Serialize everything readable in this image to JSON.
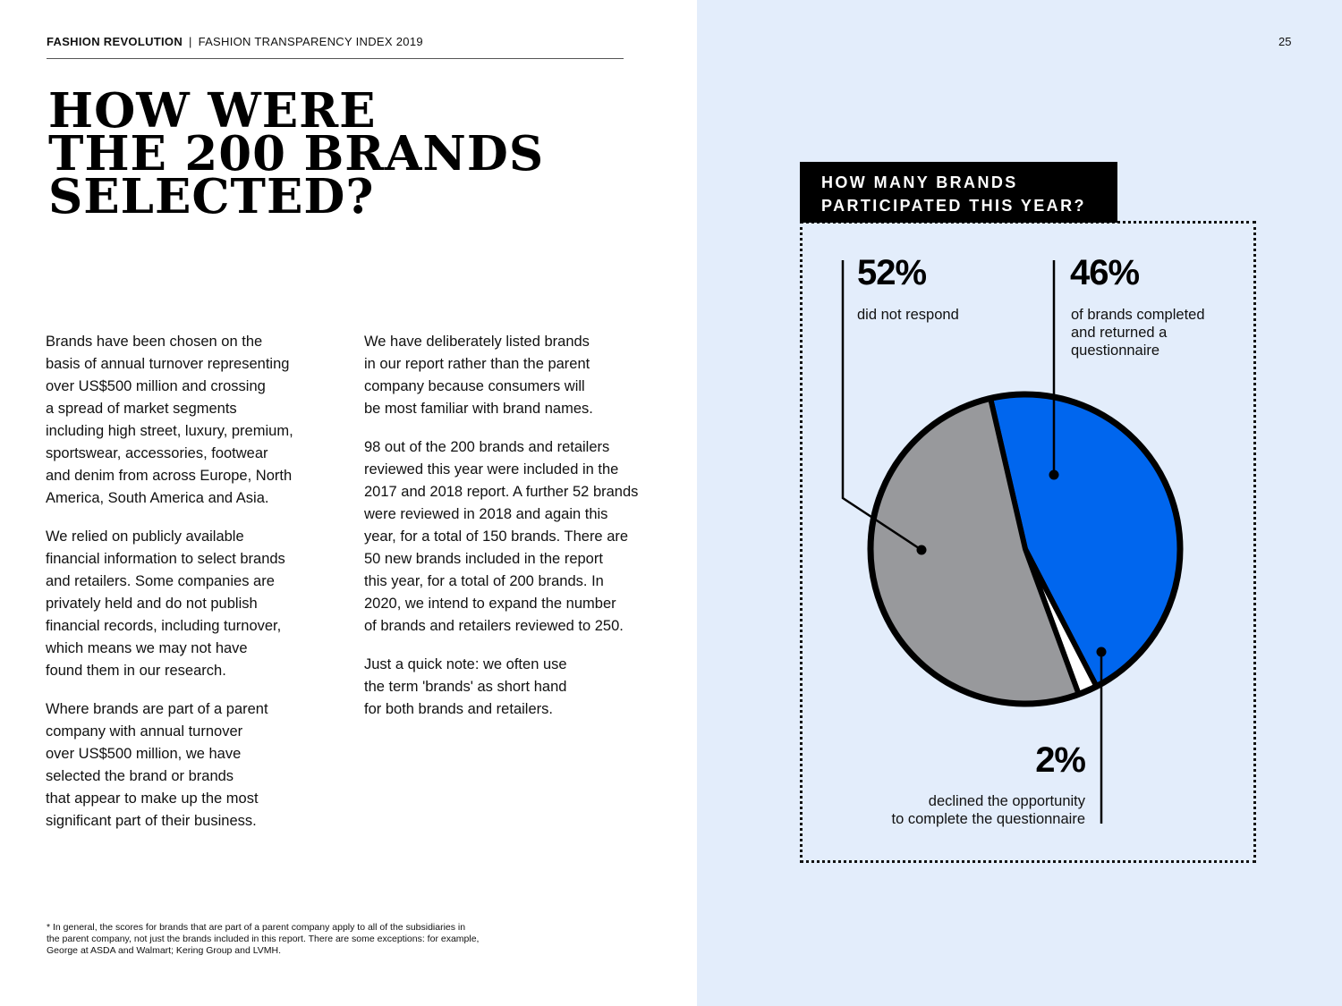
{
  "header": {
    "brand": "FASHION REVOLUTION",
    "separator": "|",
    "publication": "FASHION TRANSPARENCY INDEX 2019",
    "page_number": "25"
  },
  "title": {
    "lines": [
      "HOW WERE",
      "THE 200 BRANDS",
      "SELECTED?"
    ]
  },
  "body": {
    "column_1": [
      "Brands have been chosen on the\nbasis of annual turnover representing\nover US$500 million and crossing\na spread of market segments\nincluding high street, luxury, premium,\nsportswear, accessories, footwear\nand denim from across Europe, North\nAmerica, South America and Asia.",
      "We relied on publicly available\nfinancial information to select brands\nand retailers. Some companies are\nprivately held and do not publish\nfinancial records, including turnover,\nwhich means we may not have\nfound them in our research.",
      "Where brands are part of a parent\ncompany with annual turnover\nover US$500 million, we have\nselected the brand or brands\nthat appear to make up the most\nsignificant part of their business."
    ],
    "column_2": [
      "We have deliberately listed brands\nin our report rather than the parent\ncompany because consumers will\nbe most familiar with brand names.",
      "98 out of the 200 brands and retailers\nreviewed this year were included in the\n2017 and 2018 report. A further 52 brands\nwere reviewed in 2018 and again this\nyear, for a total of 150 brands. There are\n50 new brands included in the report\nthis year, for a total of 200 brands. In\n2020, we intend to expand the number\nof brands and retailers reviewed to 250.",
      "Just a quick note: we often use\nthe term 'brands' as short hand\nfor both brands and retailers."
    ]
  },
  "footnote": "* In general, the scores for brands that are part of a parent company apply to all of the subsidiaries in\nthe parent company, not just the brands included in this report. There are some exceptions: for example,\nGeorge at ASDA and Walmart; Kering Group and LVMH.",
  "colors": {
    "panel_background": "#e3edfb",
    "completed": "#0066ee",
    "did_not_respond": "#98999c",
    "declined": "#ffffff",
    "outline": "#000000"
  },
  "chart_data": {
    "type": "pie",
    "title": "HOW MANY BRANDS PARTICIPATED THIS YEAR?",
    "title_lines": [
      "HOW MANY BRANDS",
      "PARTICIPATED THIS YEAR?"
    ],
    "categories": [
      "did not respond",
      "of brands completed and returned a questionnaire",
      "declined the opportunity to complete the questionnaire"
    ],
    "values": [
      52,
      46,
      2
    ],
    "unit": "%",
    "labels": [
      {
        "value": "52%",
        "text": "did not respond",
        "color": "#98999c"
      },
      {
        "value": "46%",
        "text": "of brands completed\nand returned a\nquestionnaire",
        "color": "#0066ee"
      },
      {
        "value": "2%",
        "text": "declined the opportunity\nto complete the questionnaire",
        "color": "#ffffff"
      }
    ],
    "legend_position": "callouts",
    "grid": false
  }
}
